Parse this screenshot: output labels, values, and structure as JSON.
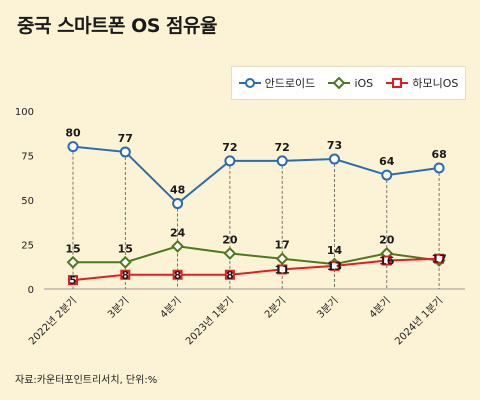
{
  "title": "중국 스마트폰 OS 점유율",
  "source": "자료:카운터포인트리서치, 단위:%",
  "chart_data": {
    "type": "line",
    "categories": [
      "2022년 2분기",
      "3분기",
      "4분기",
      "2023년 1분기",
      "2분기",
      "3분기",
      "4분기",
      "2024년 1분기"
    ],
    "ylim": [
      0,
      100
    ],
    "yticks": [
      0,
      25,
      50,
      75,
      100
    ],
    "grid": false,
    "legend_position": "top-right",
    "series": [
      {
        "name": "안드로이드",
        "color": "#2b6cb0",
        "marker": "circle",
        "values": [
          80,
          77,
          48,
          72,
          72,
          73,
          64,
          68
        ]
      },
      {
        "name": "iOS",
        "color": "#4a7a1e",
        "marker": "diamond",
        "values": [
          15,
          15,
          24,
          20,
          17,
          14,
          20,
          16
        ]
      },
      {
        "name": "하모니OS",
        "color": "#e02020",
        "marker": "square",
        "values": [
          5,
          8,
          8,
          8,
          11,
          13,
          16,
          17
        ]
      }
    ],
    "data_labels": [
      [
        "80",
        "77",
        "48",
        "72",
        "72",
        "73",
        "64",
        "68"
      ],
      [
        "15",
        "15",
        "24",
        "20",
        "17",
        "14",
        "20",
        ""
      ],
      [
        "5",
        "8",
        "8",
        "8",
        "11",
        "13",
        "16",
        "17"
      ]
    ]
  }
}
